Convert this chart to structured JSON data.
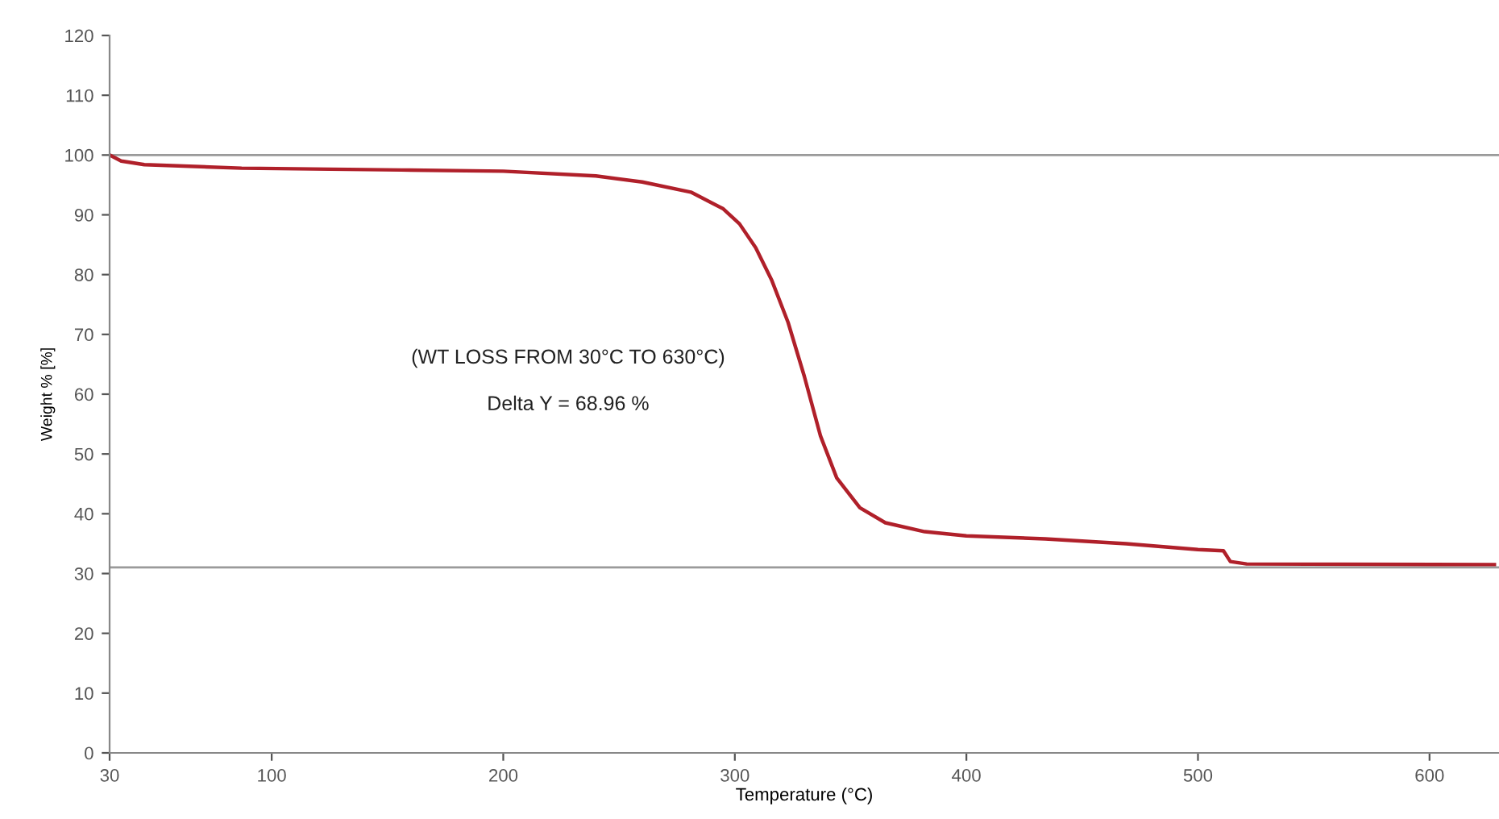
{
  "chart_data": {
    "type": "line",
    "xlabel": "Temperature (°C)",
    "ylabel": "Weight % [%]",
    "annotations": [
      "(WT LOSS FROM 30°C TO 630°C)",
      "Delta Y = 68.96 %"
    ],
    "series": [
      {
        "color": "#b0202a",
        "x": [
          30,
          35,
          45,
          87,
          156,
          200,
          240,
          260,
          281,
          295,
          302,
          309,
          316,
          323,
          330,
          337,
          344,
          354,
          365,
          382,
          400,
          434,
          469,
          500,
          511,
          514,
          521,
          628
        ],
        "values": [
          100,
          99,
          98.4,
          97.8,
          97.5,
          97.3,
          96.5,
          95.5,
          93.8,
          91,
          88.5,
          84.5,
          79,
          72,
          63,
          53,
          46,
          41,
          38.5,
          37,
          36.3,
          35.8,
          35,
          34,
          33.8,
          32,
          31.6,
          31.5
        ]
      }
    ],
    "ref_lines": [
      {
        "axis": "y",
        "value": 100,
        "color": "#9a9a9a"
      },
      {
        "axis": "y",
        "value": 31.04,
        "color": "#9a9a9a"
      }
    ],
    "xlim": [
      30,
      630
    ],
    "ylim": [
      0,
      120
    ],
    "xticks": [
      30,
      100,
      200,
      300,
      400,
      500,
      600
    ],
    "yticks": [
      0,
      10,
      20,
      30,
      40,
      50,
      60,
      70,
      80,
      90,
      100,
      110,
      120
    ],
    "grid": false,
    "legend": false
  }
}
